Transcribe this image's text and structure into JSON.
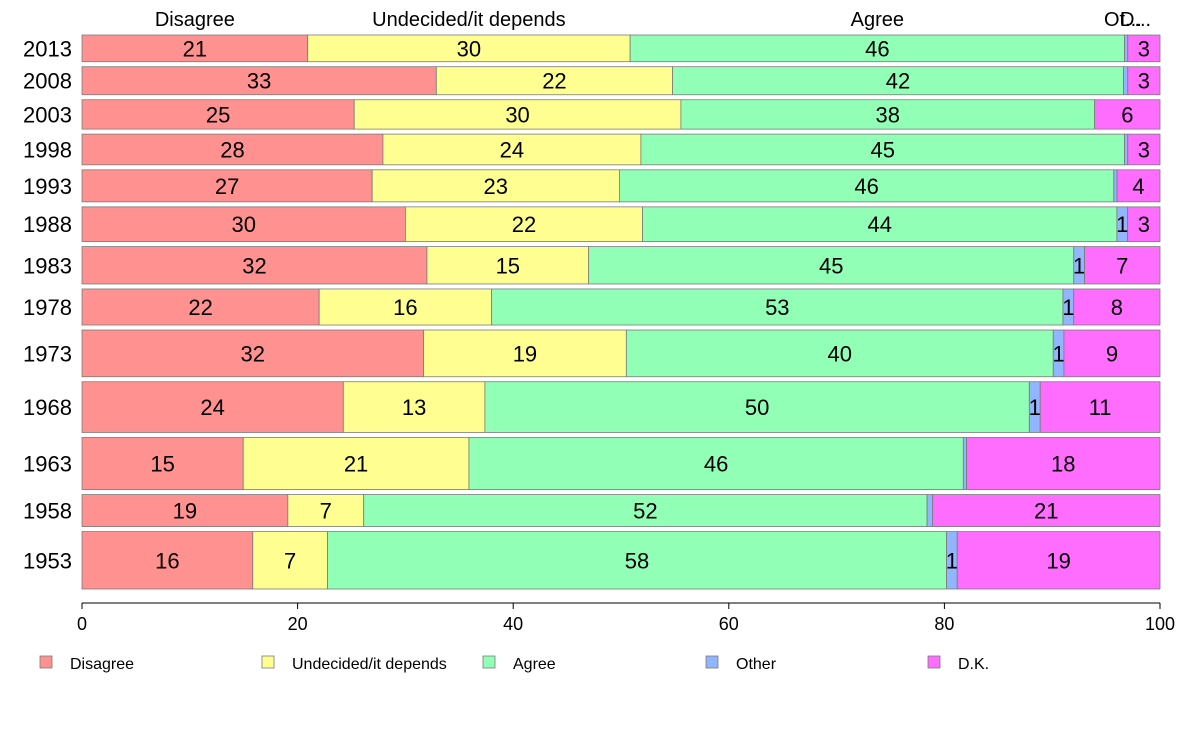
{
  "chart_data": {
    "type": "bar",
    "orientation": "horizontal",
    "stacked": true,
    "categories": [
      "2013",
      "2008",
      "2003",
      "1998",
      "1993",
      "1988",
      "1983",
      "1978",
      "1973",
      "1968",
      "1963",
      "1958",
      "1953"
    ],
    "column_headers": [
      "Disagree",
      "Undecided/it depends",
      "Agree",
      "Ot...",
      "D..."
    ],
    "series": [
      {
        "name": "Disagree",
        "color": "#ff9191",
        "values": [
          21,
          33,
          25,
          28,
          27,
          30,
          32,
          22,
          32,
          24,
          15,
          19,
          16
        ]
      },
      {
        "name": "Undecided/it depends",
        "color": "#ffff91",
        "values": [
          30,
          22,
          30,
          24,
          23,
          22,
          15,
          16,
          19,
          13,
          21,
          7,
          7
        ]
      },
      {
        "name": "Agree",
        "color": "#91ffb6",
        "values": [
          46,
          42,
          38,
          45,
          46,
          44,
          45,
          53,
          40,
          50,
          46,
          52,
          58
        ]
      },
      {
        "name": "Other",
        "color": "#91b6ff",
        "values": [
          0.3,
          0.4,
          0,
          0.3,
          0.3,
          1,
          1,
          1,
          1,
          1,
          0.3,
          0.5,
          1
        ]
      },
      {
        "name": "D.K.",
        "color": "#ff6dff",
        "values": [
          3,
          3,
          6,
          3,
          4,
          3,
          7,
          8,
          9,
          11,
          18,
          21,
          19
        ]
      }
    ],
    "segment_labels": [
      [
        "21",
        "30",
        "46",
        "",
        "3"
      ],
      [
        "33",
        "22",
        "42",
        "",
        "3"
      ],
      [
        "25",
        "30",
        "38",
        "",
        "6"
      ],
      [
        "28",
        "24",
        "45",
        "",
        "3"
      ],
      [
        "27",
        "23",
        "46",
        "",
        "4"
      ],
      [
        "30",
        "22",
        "44",
        "1",
        "3"
      ],
      [
        "32",
        "15",
        "45",
        "1",
        "7"
      ],
      [
        "22",
        "16",
        "53",
        "1",
        "8"
      ],
      [
        "32",
        "19",
        "40",
        "1",
        "9"
      ],
      [
        "24",
        "13",
        "50",
        "1",
        "11"
      ],
      [
        "15",
        "21",
        "46",
        "",
        "18"
      ],
      [
        "19",
        "7",
        "52",
        "",
        "21"
      ],
      [
        "16",
        "7",
        "58",
        "1",
        "19"
      ]
    ],
    "row_weights": [
      1,
      1.05,
      1.1,
      1.15,
      1.2,
      1.3,
      1.4,
      1.35,
      1.75,
      1.9,
      1.95,
      1.2,
      2.15
    ],
    "xlim": [
      0,
      100
    ],
    "x_ticks": [
      "0",
      "20",
      "40",
      "60",
      "80",
      "100"
    ],
    "x_tick_values": [
      0,
      20,
      40,
      60,
      80,
      100
    ],
    "grid": false,
    "legend_position": "bottom"
  }
}
